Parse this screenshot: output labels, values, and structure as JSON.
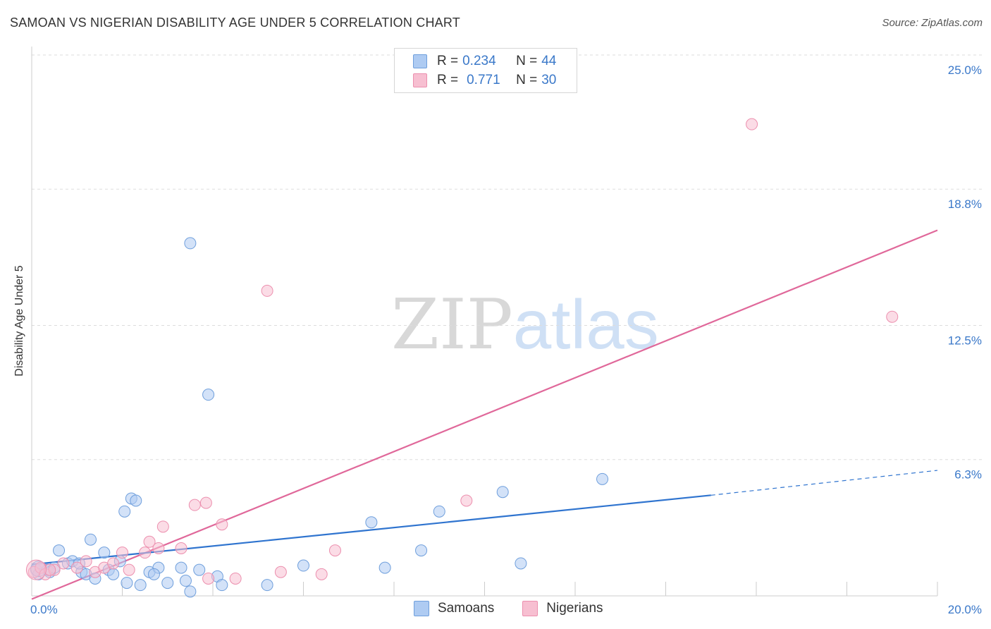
{
  "header": {
    "title": "SAMOAN VS NIGERIAN DISABILITY AGE UNDER 5 CORRELATION CHART",
    "source": "Source: ZipAtlas.com"
  },
  "watermark": {
    "zip": "ZIP",
    "atlas": "atlas"
  },
  "legend": {
    "rows": [
      {
        "r_label": "R = ",
        "r_value": "0.234",
        "n_label": "N = ",
        "n_value": "44",
        "color": "#aecbf2"
      },
      {
        "r_label": "R = ",
        "r_value": "0.771",
        "n_label": "N = ",
        "n_value": "30",
        "color": "#f7bfd1"
      }
    ]
  },
  "colors": {
    "samoans_fill": "#aecbf2",
    "samoans_stroke": "#6f9fdc",
    "samoans_line": "#2f74cf",
    "nigerians_fill": "#f7bfd1",
    "nigerians_stroke": "#ec8fae",
    "nigerians_line": "#e0689a",
    "tick_text": "#3a78c9",
    "grid": "#dddddd"
  },
  "chart_data": {
    "type": "scatter",
    "title": "SAMOAN VS NIGERIAN DISABILITY AGE UNDER 5 CORRELATION CHART",
    "xlabel": "",
    "ylabel": "Disability Age Under 5",
    "xlim": [
      0,
      20
    ],
    "ylim": [
      0,
      25
    ],
    "x_tick_labels": [
      "0.0%",
      "20.0%"
    ],
    "y_ticks": [
      6.3,
      12.5,
      18.8,
      25.0
    ],
    "y_tick_labels": [
      "6.3%",
      "12.5%",
      "18.8%",
      "25.0%"
    ],
    "grid": "horizontal dashed",
    "legend_position": "top-center",
    "series": [
      {
        "name": "Samoans",
        "points": [
          [
            0.1,
            1.2
          ],
          [
            0.2,
            1.3
          ],
          [
            0.35,
            1.2
          ],
          [
            0.4,
            1.1
          ],
          [
            0.6,
            2.1
          ],
          [
            0.8,
            1.5
          ],
          [
            0.9,
            1.6
          ],
          [
            1.1,
            1.1
          ],
          [
            1.2,
            1.0
          ],
          [
            1.3,
            2.6
          ],
          [
            1.4,
            0.8
          ],
          [
            1.6,
            2.0
          ],
          [
            1.7,
            1.2
          ],
          [
            1.8,
            1.0
          ],
          [
            1.95,
            1.6
          ],
          [
            2.05,
            3.9
          ],
          [
            2.1,
            0.6
          ],
          [
            2.2,
            4.5
          ],
          [
            2.3,
            4.4
          ],
          [
            2.4,
            0.5
          ],
          [
            2.6,
            1.1
          ],
          [
            2.8,
            1.3
          ],
          [
            3.0,
            0.6
          ],
          [
            3.3,
            1.3
          ],
          [
            3.4,
            0.7
          ],
          [
            3.5,
            0.2
          ],
          [
            3.5,
            16.3
          ],
          [
            3.7,
            1.2
          ],
          [
            3.9,
            9.3
          ],
          [
            4.1,
            0.9
          ],
          [
            4.2,
            0.5
          ],
          [
            5.2,
            0.5
          ],
          [
            6.0,
            1.4
          ],
          [
            7.5,
            3.4
          ],
          [
            7.8,
            1.3
          ],
          [
            8.6,
            2.1
          ],
          [
            9.0,
            3.9
          ],
          [
            10.4,
            4.8
          ],
          [
            10.8,
            1.5
          ],
          [
            12.6,
            5.4
          ],
          [
            0.15,
            1.0
          ],
          [
            0.5,
            1.3
          ],
          [
            1.05,
            1.5
          ],
          [
            2.7,
            1.0
          ]
        ],
        "trend": {
          "x": [
            0,
            15
          ],
          "y": [
            1.45,
            4.65
          ],
          "dashed_extension": {
            "x": [
              15,
              20
            ],
            "y": [
              4.65,
              5.8
            ]
          }
        }
      },
      {
        "name": "Nigerians",
        "points": [
          [
            0.05,
            1.1
          ],
          [
            0.2,
            1.3
          ],
          [
            0.3,
            1.0
          ],
          [
            0.5,
            1.2
          ],
          [
            0.7,
            1.5
          ],
          [
            1.0,
            1.3
          ],
          [
            1.2,
            1.6
          ],
          [
            1.4,
            1.1
          ],
          [
            1.6,
            1.3
          ],
          [
            1.8,
            1.5
          ],
          [
            2.0,
            2.0
          ],
          [
            2.15,
            1.2
          ],
          [
            2.5,
            2.0
          ],
          [
            2.6,
            2.5
          ],
          [
            2.8,
            2.2
          ],
          [
            2.9,
            3.2
          ],
          [
            3.3,
            2.2
          ],
          [
            3.6,
            4.2
          ],
          [
            3.85,
            4.3
          ],
          [
            3.9,
            0.8
          ],
          [
            4.2,
            3.3
          ],
          [
            4.5,
            0.8
          ],
          [
            5.2,
            14.1
          ],
          [
            5.5,
            1.1
          ],
          [
            6.4,
            1.0
          ],
          [
            6.7,
            2.1
          ],
          [
            9.6,
            4.4
          ],
          [
            15.9,
            21.8
          ],
          [
            19.0,
            12.9
          ],
          [
            0.4,
            1.2
          ]
        ],
        "trend": {
          "x": [
            0,
            20
          ],
          "y": [
            -0.15,
            16.9
          ]
        }
      }
    ]
  },
  "bottom_legend": {
    "items": [
      {
        "label": "Samoans"
      },
      {
        "label": "Nigerians"
      }
    ]
  }
}
